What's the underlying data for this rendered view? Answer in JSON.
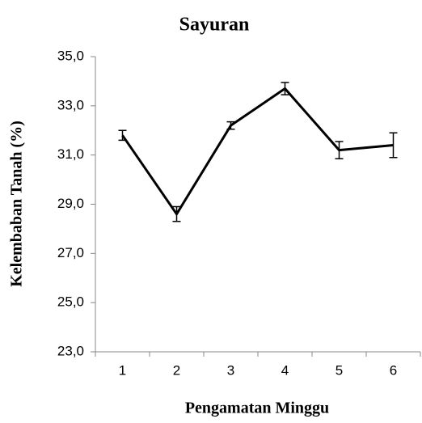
{
  "chart_data": {
    "type": "line",
    "title": "Sayuran",
    "x_label": "Pengamatan Minggu",
    "y_label": "Kelembaban Tanah (%)",
    "categories": [
      "1",
      "2",
      "3",
      "4",
      "5",
      "6"
    ],
    "series": [
      {
        "name": "Sayuran",
        "color": "#000000",
        "values": [
          31.8,
          28.6,
          32.2,
          33.7,
          31.2,
          31.4
        ],
        "errors": [
          0.2,
          0.3,
          0.15,
          0.25,
          0.35,
          0.5
        ]
      }
    ],
    "ylim": [
      23,
      35
    ],
    "yticks": [
      {
        "value": 23,
        "label": "23,0"
      },
      {
        "value": 25,
        "label": "25,0"
      },
      {
        "value": 27,
        "label": "27,0"
      },
      {
        "value": 29,
        "label": "29,0"
      },
      {
        "value": 31,
        "label": "31,0"
      },
      {
        "value": 33,
        "label": "33,0"
      },
      {
        "value": 35,
        "label": "35,0"
      }
    ],
    "grid": false
  }
}
